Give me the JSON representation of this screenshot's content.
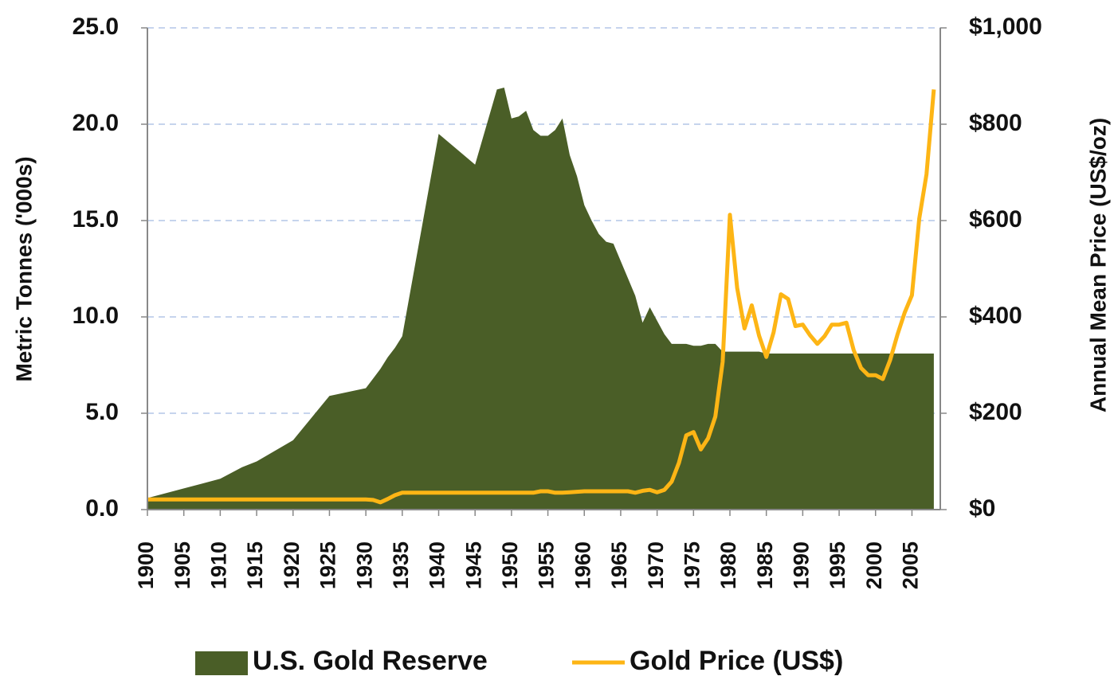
{
  "chart_data": {
    "type": "area-line",
    "y_label": "Metric Tonnes ('000s)",
    "y2_label": "Annual Mean Price (US$/oz)",
    "x": [
      1900,
      1905,
      1910,
      1913,
      1915,
      1920,
      1925,
      1930,
      1931,
      1932,
      1933,
      1934,
      1935,
      1940,
      1945,
      1948,
      1949,
      1950,
      1951,
      1952,
      1953,
      1954,
      1955,
      1956,
      1957,
      1958,
      1959,
      1960,
      1961,
      1962,
      1963,
      1964,
      1965,
      1966,
      1967,
      1968,
      1969,
      1970,
      1971,
      1972,
      1973,
      1974,
      1975,
      1976,
      1977,
      1978,
      1979,
      1980,
      1981,
      1982,
      1983,
      1984,
      1985,
      1986,
      1987,
      1988,
      1989,
      1990,
      1991,
      1992,
      1993,
      1994,
      1995,
      1996,
      1997,
      1998,
      1999,
      2000,
      2001,
      2002,
      2003,
      2004,
      2005,
      2006,
      2007,
      2008
    ],
    "series": [
      {
        "name": "U.S. Gold Reserve",
        "kind": "area",
        "axis": "y",
        "color": "#4a5e27",
        "values": [
          0.6,
          1.1,
          1.6,
          2.2,
          2.5,
          3.6,
          5.9,
          6.3,
          6.8,
          7.3,
          7.9,
          8.4,
          9.0,
          19.5,
          17.9,
          21.8,
          21.9,
          20.3,
          20.4,
          20.7,
          19.7,
          19.4,
          19.4,
          19.7,
          20.3,
          18.4,
          17.3,
          15.8,
          15.0,
          14.3,
          13.9,
          13.8,
          12.9,
          12.0,
          11.1,
          9.7,
          10.5,
          9.8,
          9.1,
          8.6,
          8.6,
          8.6,
          8.5,
          8.5,
          8.6,
          8.6,
          8.2,
          8.2,
          8.2,
          8.2,
          8.2,
          8.2,
          8.1,
          8.1,
          8.1,
          8.1,
          8.1,
          8.1,
          8.1,
          8.1,
          8.1,
          8.1,
          8.1,
          8.1,
          8.1,
          8.1,
          8.1,
          8.1,
          8.1,
          8.1,
          8.1,
          8.1,
          8.1,
          8.1,
          8.1,
          8.1
        ]
      },
      {
        "name": "Gold Price (US$)",
        "kind": "line",
        "axis": "y2",
        "color": "#fdb515",
        "values": [
          21,
          21,
          21,
          21,
          21,
          21,
          21,
          21,
          20,
          15,
          22,
          30,
          35,
          35,
          35,
          35,
          35,
          35,
          35,
          35,
          35,
          38,
          38,
          35,
          35,
          36,
          37,
          38,
          38,
          38,
          38,
          38,
          38,
          38,
          35,
          39,
          41,
          36,
          41,
          58,
          97,
          154,
          161,
          125,
          148,
          193,
          307,
          612,
          460,
          376,
          424,
          361,
          317,
          368,
          447,
          437,
          381,
          384,
          362,
          344,
          360,
          384,
          384,
          388,
          331,
          294,
          279,
          279,
          271,
          310,
          363,
          409,
          445,
          604,
          696,
          872
        ]
      }
    ],
    "xlim": [
      1900,
      2009
    ],
    "xticks": [
      1900,
      1905,
      1910,
      1915,
      1920,
      1925,
      1930,
      1935,
      1940,
      1945,
      1950,
      1955,
      1960,
      1965,
      1970,
      1975,
      1980,
      1985,
      1990,
      1995,
      2000,
      2005
    ],
    "ylim": [
      0,
      25
    ],
    "yticks": [
      {
        "value": 0,
        "label": "0.0"
      },
      {
        "value": 5,
        "label": "5.0"
      },
      {
        "value": 10,
        "label": "10.0"
      },
      {
        "value": 15,
        "label": "15.0"
      },
      {
        "value": 20,
        "label": "20.0"
      },
      {
        "value": 25,
        "label": "25.0"
      }
    ],
    "y2lim": [
      0,
      1000
    ],
    "y2ticks": [
      {
        "value": 0,
        "label": "$0"
      },
      {
        "value": 200,
        "label": "$200"
      },
      {
        "value": 400,
        "label": "$400"
      },
      {
        "value": 600,
        "label": "$600"
      },
      {
        "value": 800,
        "label": "$800"
      },
      {
        "value": 1000,
        "label": "$1,000"
      }
    ],
    "grid": true,
    "legend": "bottom"
  }
}
